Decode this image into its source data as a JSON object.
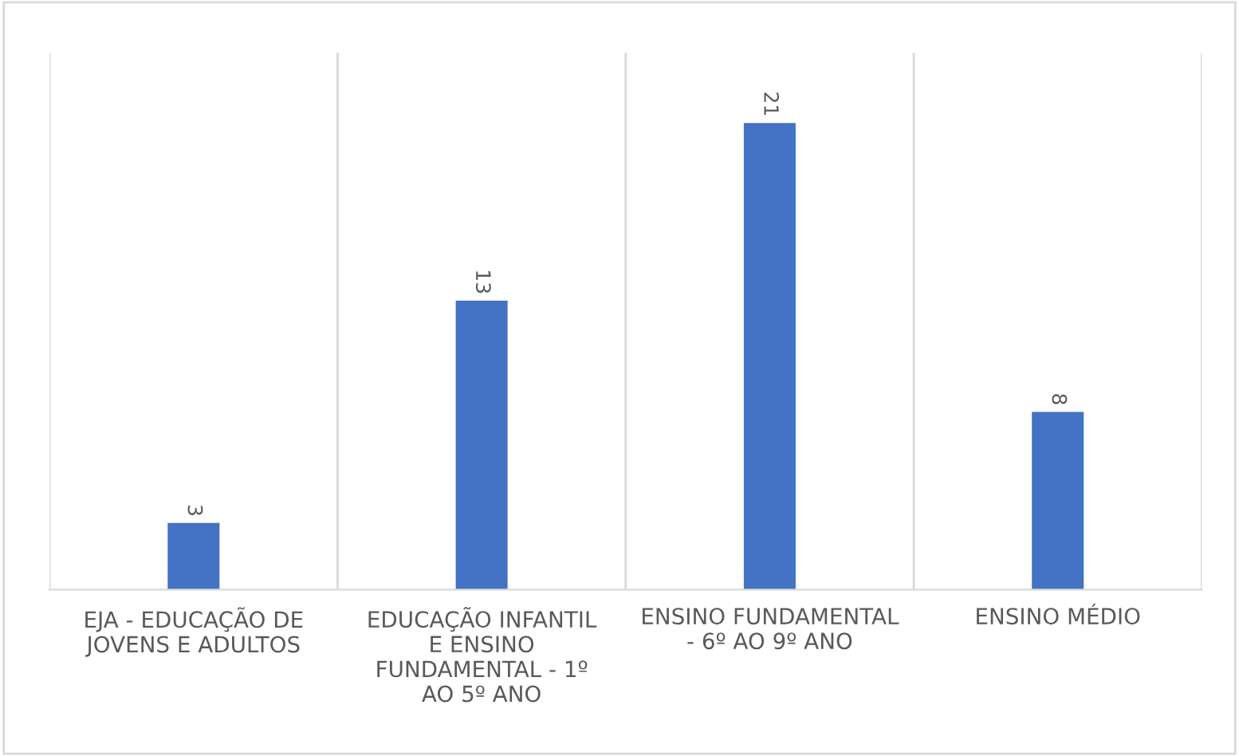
{
  "chart_data": {
    "type": "bar",
    "categories": [
      "EJA - EDUCAÇÃO DE JOVENS E ADULTOS",
      "EDUCAÇÃO INFANTIL E ENSINO FUNDAMENTAL - 1º AO 5º ANO",
      "ENSINO FUNDAMENTAL - 6º AO 9º ANO",
      "ENSINO MÉDIO"
    ],
    "values": [
      3,
      13,
      21,
      8
    ],
    "color": "#4472c4",
    "data_labels": true,
    "grid": "x"
  }
}
